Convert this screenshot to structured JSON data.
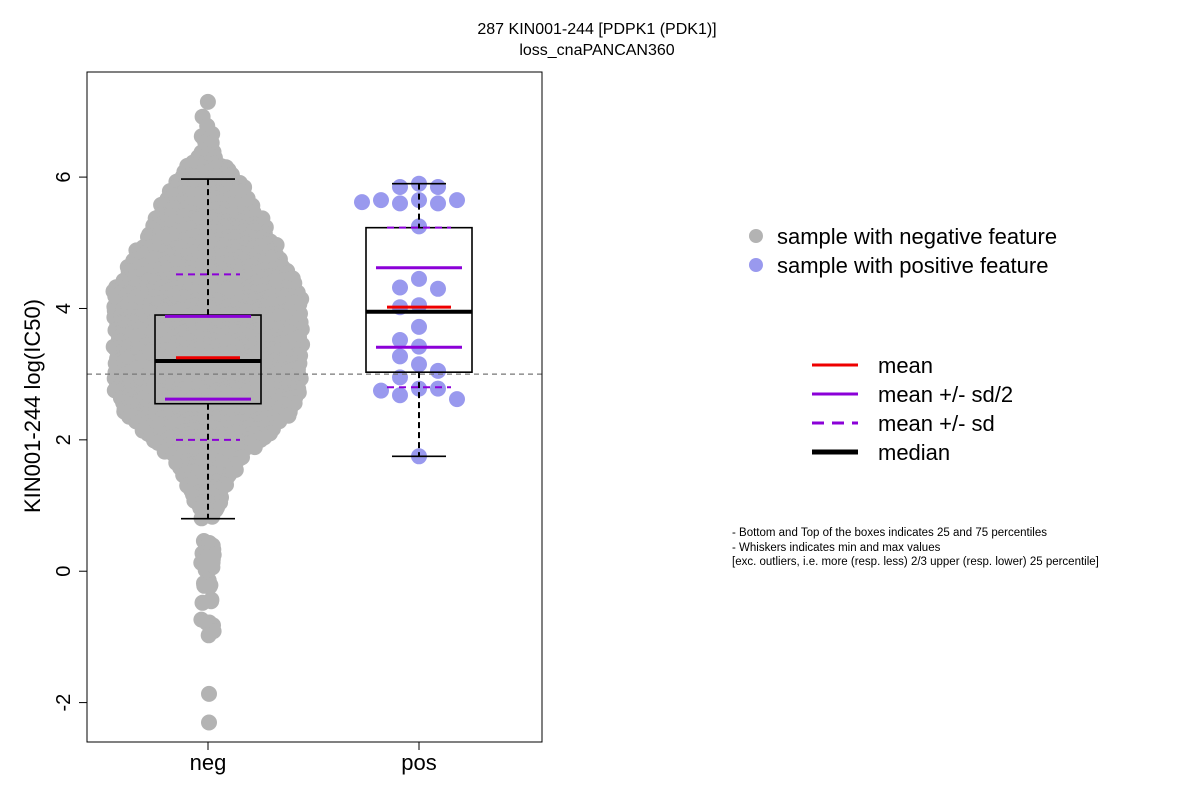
{
  "chart_data": {
    "type": "boxplot",
    "title": "287 KIN001-244 [PDPK1 (PDK1)]",
    "subtitle": "loss_cnaPANCAN360",
    "ylabel": "KIN001-244 log(IC50)",
    "ylim": [
      -2.6,
      7.6
    ],
    "yticks": [
      -2,
      0,
      2,
      4,
      6
    ],
    "categories": [
      "neg",
      "pos"
    ],
    "reference_line": 3.0,
    "groups": [
      {
        "name": "neg",
        "color": "#b3b3b3",
        "stats": {
          "q1": 2.55,
          "median": 3.2,
          "q3": 3.9,
          "mean": 3.25,
          "sd_half_low": 2.62,
          "sd_half_high": 3.88,
          "sd_low": 2.0,
          "sd_high": 4.52,
          "whisker_low": 0.8,
          "whisker_high": 5.97
        },
        "points": [
          7.15,
          6.9,
          6.78,
          6.65,
          6.6,
          6.5,
          6.35,
          6.32,
          6.3,
          6.25,
          6.2,
          6.18,
          6.15,
          6.12,
          6.1,
          6.05,
          6.0,
          5.95,
          5.9,
          5.88,
          5.85,
          5.8,
          5.75,
          5.7,
          5.65,
          5.6,
          5.55,
          5.5,
          5.45,
          5.4,
          5.35,
          5.3,
          5.25,
          5.2,
          5.15,
          5.1,
          5.05,
          5.0,
          4.95,
          4.9,
          4.85,
          4.8,
          4.75,
          4.7,
          4.65,
          4.6,
          4.55,
          4.5,
          4.45,
          4.4,
          4.35,
          4.3,
          4.25,
          4.2,
          4.15,
          4.1,
          4.05,
          4.0,
          3.95,
          3.9,
          3.85,
          3.8,
          3.75,
          3.7,
          3.65,
          3.6,
          3.55,
          3.5,
          3.45,
          3.4,
          3.35,
          3.3,
          3.25,
          3.2,
          3.15,
          3.1,
          3.05,
          3.0,
          2.95,
          2.9,
          2.85,
          2.8,
          2.75,
          2.7,
          2.65,
          2.6,
          2.55,
          2.5,
          2.45,
          2.4,
          2.35,
          2.3,
          2.25,
          2.2,
          2.15,
          2.1,
          2.05,
          2.0,
          1.95,
          1.9,
          1.85,
          1.8,
          1.75,
          1.7,
          1.65,
          1.6,
          1.55,
          1.5,
          1.45,
          1.4,
          1.35,
          1.3,
          1.25,
          1.2,
          1.15,
          1.1,
          1.05,
          1.0,
          0.95,
          0.9,
          0.85,
          0.8,
          0.45,
          0.36,
          0.3,
          0.25,
          0.22,
          0.18,
          0.15,
          0.1,
          0.05,
          -0.1,
          -0.15,
          -0.2,
          -0.25,
          -0.4,
          -0.45,
          -0.7,
          -0.78,
          -0.85,
          -0.92,
          -0.98,
          -1.85,
          -2.28
        ],
        "weights": [
          1,
          1,
          1,
          2,
          1,
          2,
          3,
          1,
          3,
          2,
          5,
          4,
          6,
          4,
          7,
          6,
          8,
          7,
          10,
          8,
          10,
          9,
          11,
          10,
          12,
          11,
          13,
          12,
          14,
          13,
          15,
          14,
          16,
          15,
          17,
          16,
          18,
          17,
          19,
          18,
          20,
          19,
          21,
          20,
          22,
          21,
          23,
          22,
          24,
          23,
          25,
          24,
          26,
          25,
          26,
          25,
          26,
          25,
          26,
          25,
          26,
          25,
          26,
          25,
          26,
          25,
          26,
          25,
          26,
          25,
          26,
          25,
          26,
          25,
          26,
          25,
          26,
          25,
          26,
          25,
          26,
          25,
          26,
          25,
          25,
          24,
          24,
          23,
          23,
          22,
          22,
          21,
          20,
          19,
          18,
          17,
          16,
          15,
          14,
          13,
          12,
          11,
          10,
          9,
          9,
          8,
          8,
          7,
          7,
          6,
          6,
          6,
          5,
          5,
          4,
          4,
          4,
          3,
          3,
          2,
          2,
          1,
          2,
          1,
          2,
          1,
          2,
          1,
          2,
          1,
          2,
          1,
          2,
          1,
          2,
          1,
          2,
          1,
          2,
          1,
          1,
          1,
          1,
          1
        ]
      },
      {
        "name": "pos",
        "color": "#9999ee",
        "stats": {
          "q1": 3.03,
          "median": 3.95,
          "q3": 5.23,
          "mean": 4.02,
          "sd_half_low": 3.41,
          "sd_half_high": 4.62,
          "sd_low": 2.8,
          "sd_high": 5.23,
          "whisker_low": 1.75,
          "whisker_high": 5.9
        },
        "points": [
          5.9,
          5.85,
          5.85,
          5.65,
          5.65,
          5.65,
          5.62,
          5.6,
          5.6,
          5.25,
          4.45,
          4.32,
          4.3,
          4.05,
          4.02,
          3.72,
          3.52,
          3.42,
          3.27,
          3.15,
          3.05,
          2.95,
          2.78,
          2.78,
          2.75,
          2.68,
          2.62,
          1.75
        ]
      }
    ],
    "legend_points": [
      {
        "label": "sample with negative feature",
        "color": "#b3b3b3"
      },
      {
        "label": "sample with positive feature",
        "color": "#9999ee"
      }
    ],
    "legend_lines": [
      {
        "label": "mean",
        "color": "#ee0000",
        "style": "solid"
      },
      {
        "label": "mean +/- sd/2",
        "color": "#8b00d8",
        "style": "solid"
      },
      {
        "label": "mean +/- sd",
        "color": "#8b00d8",
        "style": "dashed"
      },
      {
        "label": "median",
        "color": "#000000",
        "style": "solid-bold"
      }
    ],
    "notes": [
      "- Bottom and Top of the boxes indicates 25 and 75 percentiles",
      "- Whiskers indicates min and max values",
      "[exc. outliers, i.e. more (resp. less) 2/3 upper (resp. lower) 25 percentile]"
    ]
  }
}
